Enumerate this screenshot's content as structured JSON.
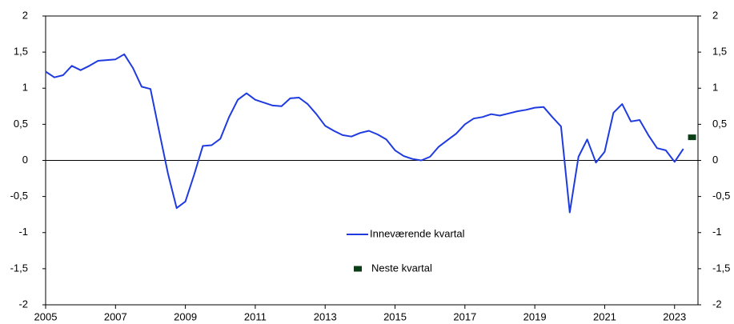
{
  "chart_data": {
    "type": "line",
    "xlim": [
      2005,
      2023.67
    ],
    "xticks": [
      2005,
      2007,
      2009,
      2011,
      2013,
      2015,
      2017,
      2019,
      2021,
      2023
    ],
    "ylim": [
      -2,
      2
    ],
    "yticks": [
      -2,
      {
        "value": -1.5,
        "label": "-1,5"
      },
      -1,
      {
        "value": -0.5,
        "label": "-0,5"
      },
      0,
      {
        "value": 0.5,
        "label": "0,5"
      },
      1,
      {
        "value": 1.5,
        "label": "1,5"
      },
      2
    ],
    "y2lim": [
      -2,
      2
    ],
    "y2ticks": [
      -2,
      {
        "value": -1.5,
        "label": "-1,5"
      },
      -1,
      {
        "value": -0.5,
        "label": "-0,5"
      },
      0,
      {
        "value": 0.5,
        "label": "0,5"
      },
      1,
      {
        "value": 1.5,
        "label": "1,5"
      },
      2
    ],
    "series": [
      {
        "name": "Inneværende kvartal",
        "color": "#1f3be0",
        "x": [
          2005,
          2005.25,
          2005.5,
          2005.75,
          2006,
          2006.25,
          2006.5,
          2006.75,
          2007,
          2007.25,
          2007.5,
          2007.75,
          2008,
          2008.25,
          2008.5,
          2008.75,
          2009,
          2009.25,
          2009.5,
          2009.75,
          2010,
          2010.25,
          2010.5,
          2010.75,
          2011,
          2011.25,
          2011.5,
          2011.75,
          2012,
          2012.25,
          2012.5,
          2012.75,
          2013,
          2013.25,
          2013.5,
          2013.75,
          2014,
          2014.25,
          2014.5,
          2014.75,
          2015,
          2015.25,
          2015.5,
          2015.75,
          2016,
          2016.25,
          2016.5,
          2016.75,
          2017,
          2017.25,
          2017.5,
          2017.75,
          2018,
          2018.25,
          2018.5,
          2018.75,
          2019,
          2019.25,
          2019.5,
          2019.75,
          2020,
          2020.25,
          2020.5,
          2020.75,
          2021,
          2021.25,
          2021.5,
          2021.75,
          2022,
          2022.25,
          2022.5,
          2022.75,
          2023,
          2023.25
        ],
        "values": [
          1.23,
          1.15,
          1.18,
          1.31,
          1.25,
          1.31,
          1.38,
          1.39,
          1.4,
          1.47,
          1.28,
          1.02,
          0.99,
          0.4,
          -0.18,
          -0.66,
          -0.57,
          -0.2,
          0.2,
          0.21,
          0.3,
          0.6,
          0.84,
          0.93,
          0.84,
          0.8,
          0.76,
          0.75,
          0.86,
          0.87,
          0.78,
          0.64,
          0.48,
          0.41,
          0.35,
          0.33,
          0.38,
          0.41,
          0.36,
          0.29,
          0.14,
          0.06,
          0.02,
          0.0,
          0.05,
          0.19,
          0.28,
          0.37,
          0.5,
          0.58,
          0.6,
          0.64,
          0.62,
          0.65,
          0.68,
          0.7,
          0.73,
          0.74,
          0.6,
          0.47,
          -0.72,
          0.05,
          0.29,
          -0.03,
          0.12,
          0.66,
          0.78,
          0.54,
          0.56,
          0.35,
          0.17,
          0.14,
          -0.02,
          0.16
        ]
      },
      {
        "name": "Neste kvartal",
        "color": "#0b3d17",
        "marker": "square",
        "x": [
          2023.5
        ],
        "values": [
          0.32
        ]
      }
    ]
  }
}
